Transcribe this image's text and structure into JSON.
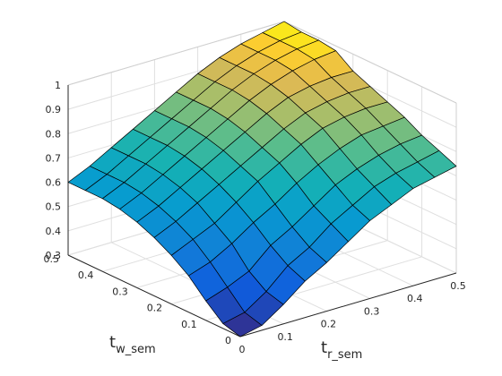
{
  "chart_data": {
    "type": "surface",
    "title": "",
    "xlabel": "t_r_sem",
    "ylabel": "t_w_sem",
    "zlabel": "",
    "xlim": [
      0,
      0.5
    ],
    "ylim": [
      0,
      0.5
    ],
    "zlim": [
      0.3,
      1
    ],
    "grid": true,
    "colormap": "parula",
    "x": [
      0,
      0.05,
      0.1,
      0.15,
      0.2,
      0.25,
      0.3,
      0.35,
      0.4,
      0.45,
      0.5
    ],
    "y": [
      0,
      0.05,
      0.1,
      0.15,
      0.2,
      0.25,
      0.3,
      0.35,
      0.4,
      0.45,
      0.5
    ],
    "z": [
      [
        0.3,
        0.32,
        0.38,
        0.45,
        0.5,
        0.56,
        0.62,
        0.66,
        0.7,
        0.72,
        0.74
      ],
      [
        0.32,
        0.34,
        0.4,
        0.48,
        0.53,
        0.6,
        0.65,
        0.7,
        0.73,
        0.75,
        0.77
      ],
      [
        0.38,
        0.41,
        0.45,
        0.53,
        0.58,
        0.64,
        0.7,
        0.74,
        0.77,
        0.79,
        0.8
      ],
      [
        0.45,
        0.48,
        0.53,
        0.59,
        0.64,
        0.7,
        0.75,
        0.79,
        0.82,
        0.83,
        0.84
      ],
      [
        0.5,
        0.54,
        0.58,
        0.64,
        0.7,
        0.75,
        0.8,
        0.84,
        0.86,
        0.87,
        0.87
      ],
      [
        0.54,
        0.58,
        0.63,
        0.68,
        0.73,
        0.78,
        0.83,
        0.87,
        0.89,
        0.9,
        0.9
      ],
      [
        0.57,
        0.61,
        0.66,
        0.71,
        0.76,
        0.81,
        0.86,
        0.9,
        0.92,
        0.93,
        0.93
      ],
      [
        0.59,
        0.63,
        0.68,
        0.73,
        0.78,
        0.83,
        0.88,
        0.92,
        0.95,
        0.97,
        0.98
      ],
      [
        0.6,
        0.64,
        0.69,
        0.74,
        0.79,
        0.84,
        0.89,
        0.93,
        0.96,
        0.98,
        0.99
      ],
      [
        0.6,
        0.64,
        0.69,
        0.74,
        0.79,
        0.84,
        0.89,
        0.93,
        0.96,
        0.98,
        0.99
      ],
      [
        0.6,
        0.64,
        0.69,
        0.74,
        0.79,
        0.84,
        0.89,
        0.93,
        0.96,
        0.98,
        1.0
      ]
    ],
    "x_ticks": [
      "0",
      "0.1",
      "0.2",
      "0.3",
      "0.4",
      "0.5"
    ],
    "y_ticks": [
      "0",
      "0.1",
      "0.2",
      "0.3",
      "0.4",
      "0.5"
    ],
    "z_ticks": [
      "0.3",
      "0.4",
      "0.5",
      "0.6",
      "0.7",
      "0.8",
      "0.9",
      "1"
    ]
  }
}
